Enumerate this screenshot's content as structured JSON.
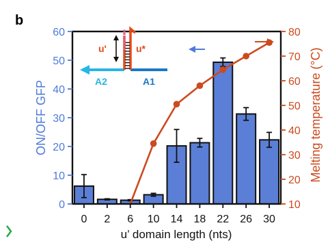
{
  "panel_label": "b",
  "inset": {
    "u_prime_label": "u'",
    "u_star_label": "u*",
    "a2_label": "A2",
    "a1_label": "A1"
  },
  "colors": {
    "bar_fill": "#5b7fd6",
    "bar_stroke": "#111111",
    "left_axis": "#4f7bd8",
    "right_axis": "#cc4a1e",
    "line": "#cc4a1e",
    "cyan_strand": "#27b6e6",
    "blue_strand": "#1a78c8",
    "orange_strand": "#e24a1a",
    "pink_dots": "#e6608a"
  },
  "chart_data": {
    "type": "bar",
    "categories": [
      "0",
      "2",
      "6",
      "10",
      "14",
      "18",
      "22",
      "26",
      "30"
    ],
    "xlabel": "u’ domain length (nts)",
    "ylabel": "ON/OFF GFP",
    "y2label": "Melting temperature (°C)",
    "ylim": [
      0,
      60
    ],
    "y2lim": [
      10,
      80
    ],
    "yticks": [
      "0",
      "10",
      "20",
      "30",
      "40",
      "50",
      "60"
    ],
    "y2ticks": [
      "10",
      "20",
      "30",
      "40",
      "50",
      "60",
      "70",
      "80"
    ],
    "series": [
      {
        "kind": "bar",
        "axis": "left",
        "values": [
          6.2,
          1.6,
          1.3,
          3.2,
          20.2,
          21.3,
          49.3,
          31.3,
          22.3
        ],
        "errors": [
          4.0,
          0.2,
          0.2,
          0.5,
          5.7,
          1.5,
          1.5,
          2.2,
          2.6
        ]
      },
      {
        "kind": "line",
        "axis": "right",
        "values": [
          null,
          null,
          10.0,
          34.5,
          50.5,
          58.0,
          64.5,
          70.0,
          75.5
        ]
      }
    ],
    "grid": false,
    "legend": "none"
  }
}
